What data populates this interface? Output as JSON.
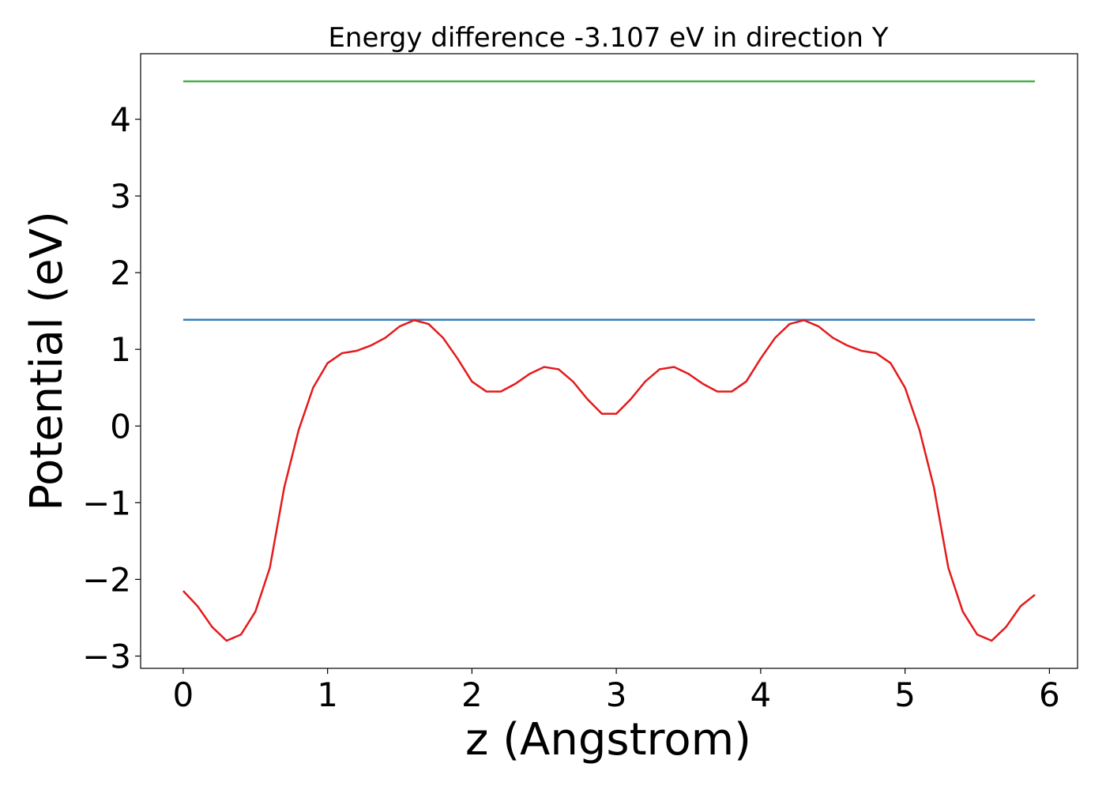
{
  "chart_data": {
    "type": "line",
    "title": "Energy difference -3.107 eV in direction Y",
    "x_label": "z (Angstrom)",
    "y_label": "Potential (eV)",
    "xlim": [
      -0.295,
      6.195
    ],
    "ylim": [
      -3.16,
      4.855
    ],
    "xticks": [
      0,
      1,
      2,
      3,
      4,
      5,
      6
    ],
    "yticks": [
      {
        "value": -3,
        "label": "−3"
      },
      {
        "value": -2,
        "label": "−2"
      },
      {
        "value": -1,
        "label": "−1"
      },
      0,
      1,
      2,
      3,
      4
    ],
    "series": [
      {
        "color": "#4daf4a",
        "x": [
          0,
          5.9
        ],
        "values": [
          4.494,
          4.494
        ]
      },
      {
        "color": "#377eb8",
        "x": [
          0,
          5.9
        ],
        "values": [
          1.386,
          1.386
        ]
      },
      {
        "color": "#e41a1c",
        "x": [
          0,
          0.1,
          0.2,
          0.3,
          0.4,
          0.5,
          0.6,
          0.7,
          0.8,
          0.9,
          1.0,
          1.1,
          1.2,
          1.3,
          1.4,
          1.5,
          1.6,
          1.7,
          1.8,
          1.9,
          2.0,
          2.1,
          2.2,
          2.3,
          2.4,
          2.5,
          2.6,
          2.7,
          2.8,
          2.9,
          3.0,
          3.1,
          3.2,
          3.3,
          3.4,
          3.5,
          3.6,
          3.7,
          3.8,
          3.9,
          4.0,
          4.1,
          4.2,
          4.3,
          4.4,
          4.5,
          4.6,
          4.7,
          4.8,
          4.9,
          5.0,
          5.1,
          5.2,
          5.3,
          5.4,
          5.5,
          5.6,
          5.7,
          5.8,
          5.9
        ],
        "values": [
          -2.15,
          -2.35,
          -2.62,
          -2.8,
          -2.72,
          -2.42,
          -1.85,
          -0.8,
          -0.05,
          0.5,
          0.82,
          0.95,
          0.98,
          1.05,
          1.15,
          1.3,
          1.38,
          1.33,
          1.15,
          0.88,
          0.58,
          0.45,
          0.45,
          0.55,
          0.68,
          0.77,
          0.74,
          0.58,
          0.35,
          0.16,
          0.16,
          0.35,
          0.58,
          0.74,
          0.77,
          0.68,
          0.55,
          0.45,
          0.45,
          0.58,
          0.88,
          1.15,
          1.33,
          1.38,
          1.3,
          1.15,
          1.05,
          0.98,
          0.95,
          0.82,
          0.5,
          -0.05,
          -0.8,
          -1.85,
          -2.42,
          -2.72,
          -2.8,
          -2.62,
          -2.35,
          -2.2
        ]
      }
    ]
  }
}
